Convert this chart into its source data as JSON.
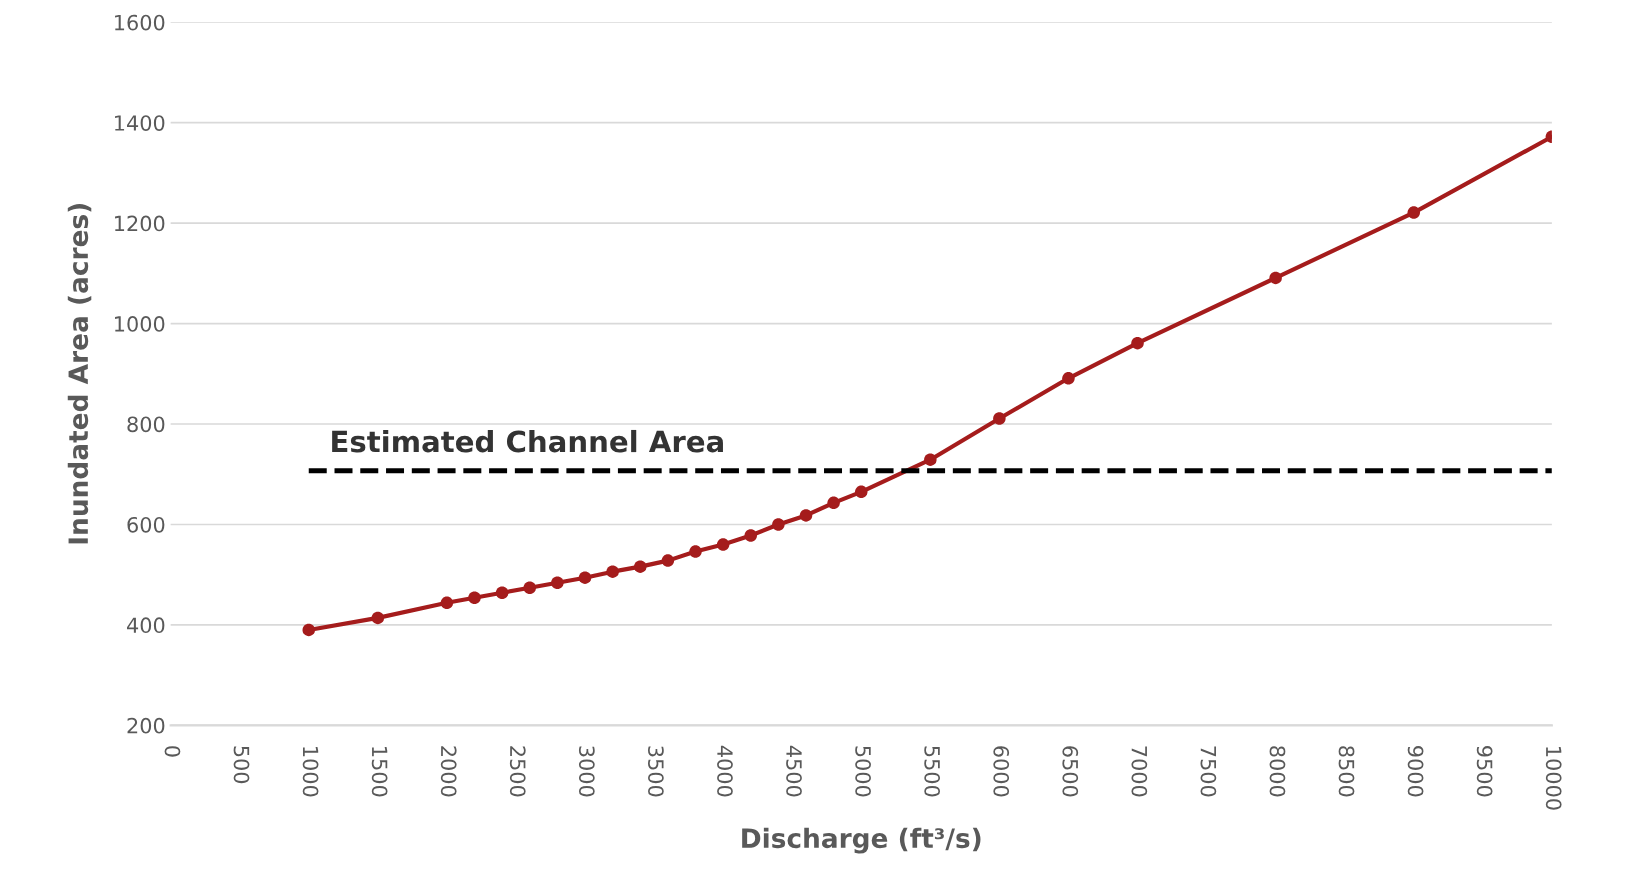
{
  "chart_data": {
    "type": "line",
    "xlabel": "Discharge (ft³/s)",
    "ylabel": "Inundated Area (acres)",
    "x": [
      1000,
      1500,
      2000,
      2200,
      2400,
      2600,
      2800,
      3000,
      3200,
      3400,
      3600,
      3800,
      4000,
      4200,
      4400,
      4600,
      4800,
      5000,
      5500,
      6000,
      6500,
      7000,
      8000,
      9000,
      10000
    ],
    "series": [
      {
        "color": "#a51c1c",
        "values": [
          390,
          414,
          444,
          454,
          464,
          474,
          484,
          494,
          506,
          516,
          528,
          546,
          560,
          578,
          600,
          618,
          643,
          665,
          729,
          811,
          891,
          961,
          1091,
          1221,
          1372
        ]
      }
    ],
    "marker": "circle",
    "line_style": "solid",
    "xlim": [
      0,
      10000
    ],
    "xticks": [
      0,
      500,
      1000,
      1500,
      2000,
      2500,
      3000,
      3500,
      4000,
      4500,
      5000,
      5500,
      6000,
      6500,
      7000,
      7500,
      8000,
      8500,
      9000,
      9500,
      10000
    ],
    "ylim": [
      200,
      1600
    ],
    "yticks": [
      200,
      400,
      600,
      800,
      1000,
      1200,
      1400,
      1600
    ],
    "grid": "y",
    "legend": false,
    "ref_lines": [
      {
        "axis": "y",
        "value": 707,
        "label": "Estimated Channel Area",
        "color": "#000000",
        "line_style": "dashed"
      }
    ]
  }
}
